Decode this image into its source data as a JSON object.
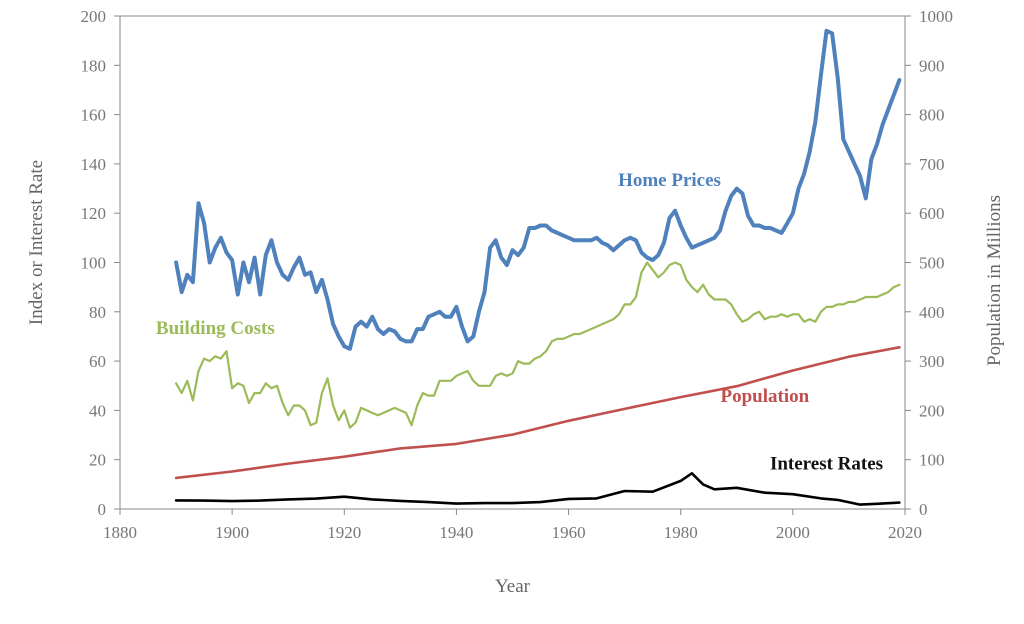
{
  "chart_data": {
    "type": "line",
    "xlabel": "Year",
    "ylabel": "Index or Interest Rate",
    "y2label": "Population in Millions",
    "xlim": [
      1880,
      2020
    ],
    "ylim": [
      0,
      200
    ],
    "y2lim": [
      0,
      1000
    ],
    "x_ticks": [
      1880,
      1900,
      1920,
      1940,
      1960,
      1980,
      2000,
      2020
    ],
    "y_ticks": [
      0,
      20,
      40,
      60,
      80,
      100,
      120,
      140,
      160,
      180,
      200
    ],
    "y2_ticks": [
      0,
      100,
      200,
      300,
      400,
      500,
      600,
      700,
      800,
      900,
      1000
    ],
    "grid": false,
    "legend": "none (series labeled inline)",
    "series": [
      {
        "name": "Home Prices",
        "axis": "left",
        "color": "#4f81bd",
        "x": [
          1890,
          1891,
          1892,
          1893,
          1894,
          1895,
          1896,
          1897,
          1898,
          1899,
          1900,
          1901,
          1902,
          1903,
          1904,
          1905,
          1906,
          1907,
          1908,
          1909,
          1910,
          1911,
          1912,
          1913,
          1914,
          1915,
          1916,
          1917,
          1918,
          1919,
          1920,
          1921,
          1922,
          1923,
          1924,
          1925,
          1926,
          1927,
          1928,
          1929,
          1930,
          1931,
          1932,
          1933,
          1934,
          1935,
          1936,
          1937,
          1938,
          1939,
          1940,
          1941,
          1942,
          1943,
          1944,
          1945,
          1946,
          1947,
          1948,
          1949,
          1950,
          1951,
          1952,
          1953,
          1954,
          1955,
          1956,
          1957,
          1958,
          1959,
          1960,
          1961,
          1962,
          1963,
          1964,
          1965,
          1966,
          1967,
          1968,
          1969,
          1970,
          1971,
          1972,
          1973,
          1974,
          1975,
          1976,
          1977,
          1978,
          1979,
          1980,
          1981,
          1982,
          1983,
          1984,
          1985,
          1986,
          1987,
          1988,
          1989,
          1990,
          1991,
          1992,
          1993,
          1994,
          1995,
          1996,
          1997,
          1998,
          1999,
          2000,
          2001,
          2002,
          2003,
          2004,
          2005,
          2006,
          2007,
          2008,
          2009,
          2010,
          2011,
          2012,
          2013,
          2014,
          2015,
          2016,
          2017,
          2018,
          2019
        ],
        "values": [
          100,
          88,
          95,
          92,
          124,
          116,
          100,
          106,
          110,
          104,
          101,
          87,
          100,
          92,
          102,
          87,
          103,
          109,
          100,
          95,
          93,
          98,
          102,
          95,
          96,
          88,
          93,
          85,
          75,
          70,
          66,
          65,
          74,
          76,
          74,
          78,
          73,
          71,
          73,
          72,
          69,
          68,
          68,
          73,
          73,
          78,
          79,
          80,
          78,
          78,
          82,
          74,
          68,
          70,
          80,
          88,
          106,
          109,
          102,
          99,
          105,
          103,
          106,
          114,
          114,
          115,
          115,
          113,
          112,
          111,
          110,
          109,
          109,
          109,
          109,
          110,
          108,
          107,
          105,
          107,
          109,
          110,
          109,
          104,
          102,
          101,
          103,
          108,
          118,
          121,
          115,
          110,
          106,
          107,
          108,
          109,
          110,
          113,
          121,
          127,
          130,
          128,
          119,
          115,
          115,
          114,
          114,
          113,
          112,
          116,
          120,
          130,
          136,
          145,
          157,
          176,
          194,
          193,
          175,
          150,
          145,
          140,
          135,
          126,
          142,
          148,
          156,
          162,
          168,
          174
        ],
        "label_x": 1978,
        "label_y": 131
      },
      {
        "name": "Building Costs",
        "axis": "left",
        "color": "#9bbb59",
        "x": [
          1890,
          1891,
          1892,
          1893,
          1894,
          1895,
          1896,
          1897,
          1898,
          1899,
          1900,
          1901,
          1902,
          1903,
          1904,
          1905,
          1906,
          1907,
          1908,
          1909,
          1910,
          1911,
          1912,
          1913,
          1914,
          1915,
          1916,
          1917,
          1918,
          1919,
          1920,
          1921,
          1922,
          1923,
          1924,
          1925,
          1926,
          1927,
          1928,
          1929,
          1930,
          1931,
          1932,
          1933,
          1934,
          1935,
          1936,
          1937,
          1938,
          1939,
          1940,
          1941,
          1942,
          1943,
          1944,
          1945,
          1946,
          1947,
          1948,
          1949,
          1950,
          1951,
          1952,
          1953,
          1954,
          1955,
          1956,
          1957,
          1958,
          1959,
          1960,
          1961,
          1962,
          1963,
          1964,
          1965,
          1966,
          1967,
          1968,
          1969,
          1970,
          1971,
          1972,
          1973,
          1974,
          1975,
          1976,
          1977,
          1978,
          1979,
          1980,
          1981,
          1982,
          1983,
          1984,
          1985,
          1986,
          1987,
          1988,
          1989,
          1990,
          1991,
          1992,
          1993,
          1994,
          1995,
          1996,
          1997,
          1998,
          1999,
          2000,
          2001,
          2002,
          2003,
          2004,
          2005,
          2006,
          2007,
          2008,
          2009,
          2010,
          2011,
          2012,
          2013,
          2014,
          2015,
          2016,
          2017,
          2018,
          2019
        ],
        "values": [
          51,
          47,
          52,
          44,
          56,
          61,
          60,
          62,
          61,
          64,
          49,
          51,
          50,
          43,
          47,
          47,
          51,
          49,
          50,
          43,
          38,
          42,
          42,
          40,
          34,
          35,
          47,
          53,
          42,
          36,
          40,
          33,
          35,
          41,
          40,
          39,
          38,
          39,
          40,
          41,
          40,
          39,
          34,
          42,
          47,
          46,
          46,
          52,
          52,
          52,
          54,
          55,
          56,
          52,
          50,
          50,
          50,
          54,
          55,
          54,
          55,
          60,
          59,
          59,
          61,
          62,
          64,
          68,
          69,
          69,
          70,
          71,
          71,
          72,
          73,
          74,
          75,
          76,
          77,
          79,
          83,
          83,
          86,
          96,
          100,
          97,
          94,
          96,
          99,
          100,
          99,
          93,
          90,
          88,
          91,
          87,
          85,
          85,
          85,
          83,
          79,
          76,
          77,
          79,
          80,
          77,
          78,
          78,
          79,
          78,
          79,
          79,
          76,
          77,
          76,
          80,
          82,
          82,
          83,
          83,
          84,
          84,
          85,
          86,
          86,
          86,
          87,
          88,
          90,
          91
        ],
        "label_x": 1897,
        "label_y": 71
      },
      {
        "name": "Population",
        "axis": "right",
        "color": "#c0504d",
        "x": [
          1890,
          1900,
          1910,
          1920,
          1930,
          1940,
          1950,
          1960,
          1970,
          1980,
          1990,
          2000,
          2010,
          2019
        ],
        "values": [
          63,
          76,
          92,
          106,
          123,
          132,
          151,
          179,
          203,
          227,
          249,
          281,
          309,
          328
        ],
        "label_x": 1995,
        "label_y": 217
      },
      {
        "name": "Interest Rates",
        "axis": "left",
        "color": "#000000",
        "x": [
          1890,
          1895,
          1900,
          1905,
          1910,
          1915,
          1920,
          1925,
          1930,
          1935,
          1940,
          1945,
          1950,
          1955,
          1960,
          1965,
          1970,
          1975,
          1980,
          1982,
          1984,
          1986,
          1990,
          1995,
          2000,
          2005,
          2008,
          2012,
          2015,
          2019
        ],
        "values": [
          3.5,
          3.4,
          3.2,
          3.4,
          3.9,
          4.2,
          5.0,
          3.9,
          3.3,
          2.8,
          2.2,
          2.4,
          2.4,
          2.8,
          4.1,
          4.3,
          7.3,
          7.0,
          11.4,
          14.5,
          10.0,
          8.0,
          8.6,
          6.6,
          6.0,
          4.3,
          3.7,
          1.8,
          2.1,
          2.6
        ],
        "label_x": 2006,
        "label_y": 16
      }
    ]
  }
}
